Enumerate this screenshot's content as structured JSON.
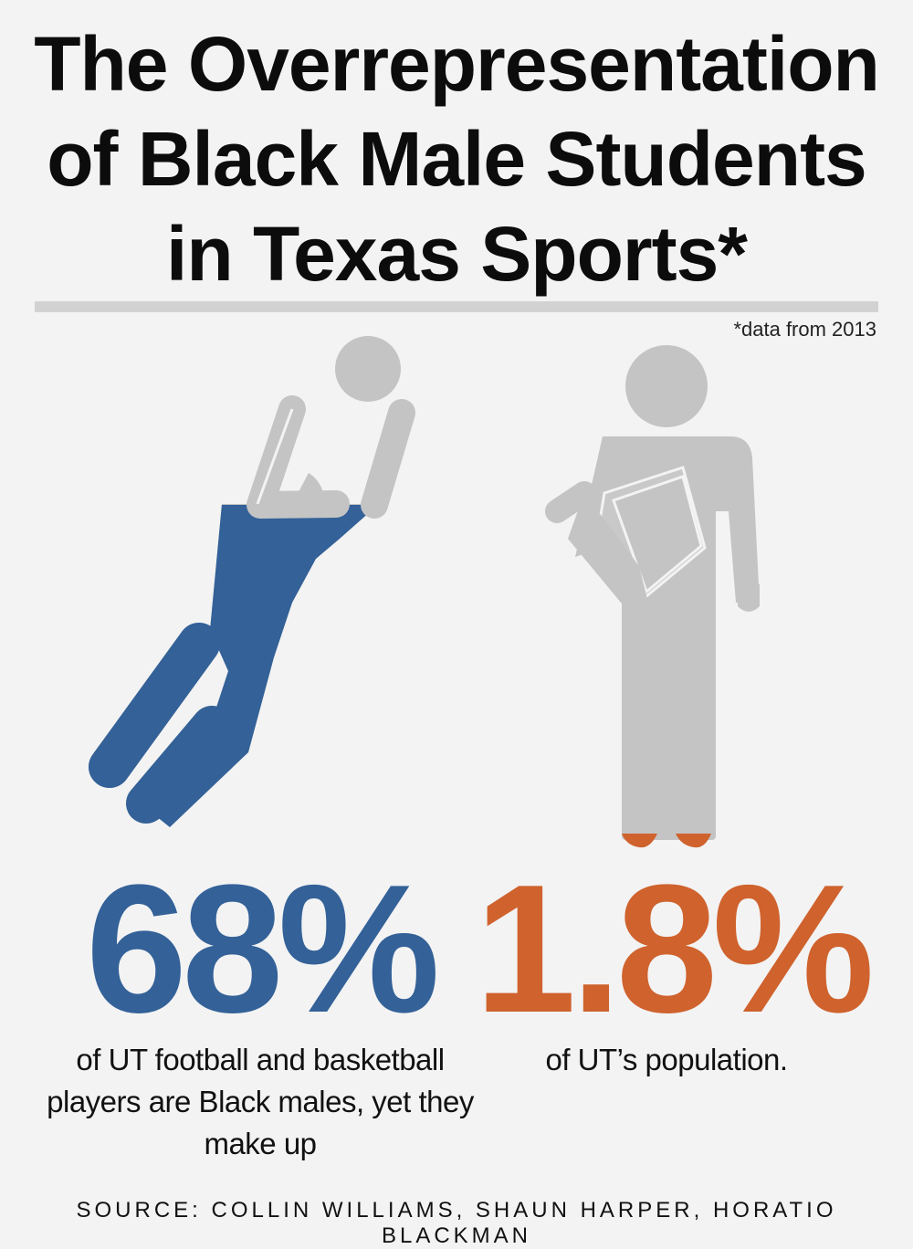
{
  "title": {
    "line1": "The Overrepresentation",
    "line2": "of Black Male Students",
    "line3": "in Texas Sports*"
  },
  "note": "*data from 2013",
  "left": {
    "stat": "68%",
    "description": "of UT football and basketball players are Black males, yet they make up",
    "fill_fraction": 0.68,
    "accent_color": "#336198",
    "icon": "basketball-player-icon"
  },
  "right": {
    "stat": "1.8%",
    "description": "of UT’s population.",
    "fill_fraction": 0.018,
    "accent_color": "#cf622d",
    "icon": "student-with-book-icon"
  },
  "source": "SOURCE: COLLIN WILLIAMS, SHAUN HARPER, HORATIO BLACKMAN",
  "colors": {
    "background": "#f3f3f3",
    "figure_gray": "#c4c4c4"
  }
}
